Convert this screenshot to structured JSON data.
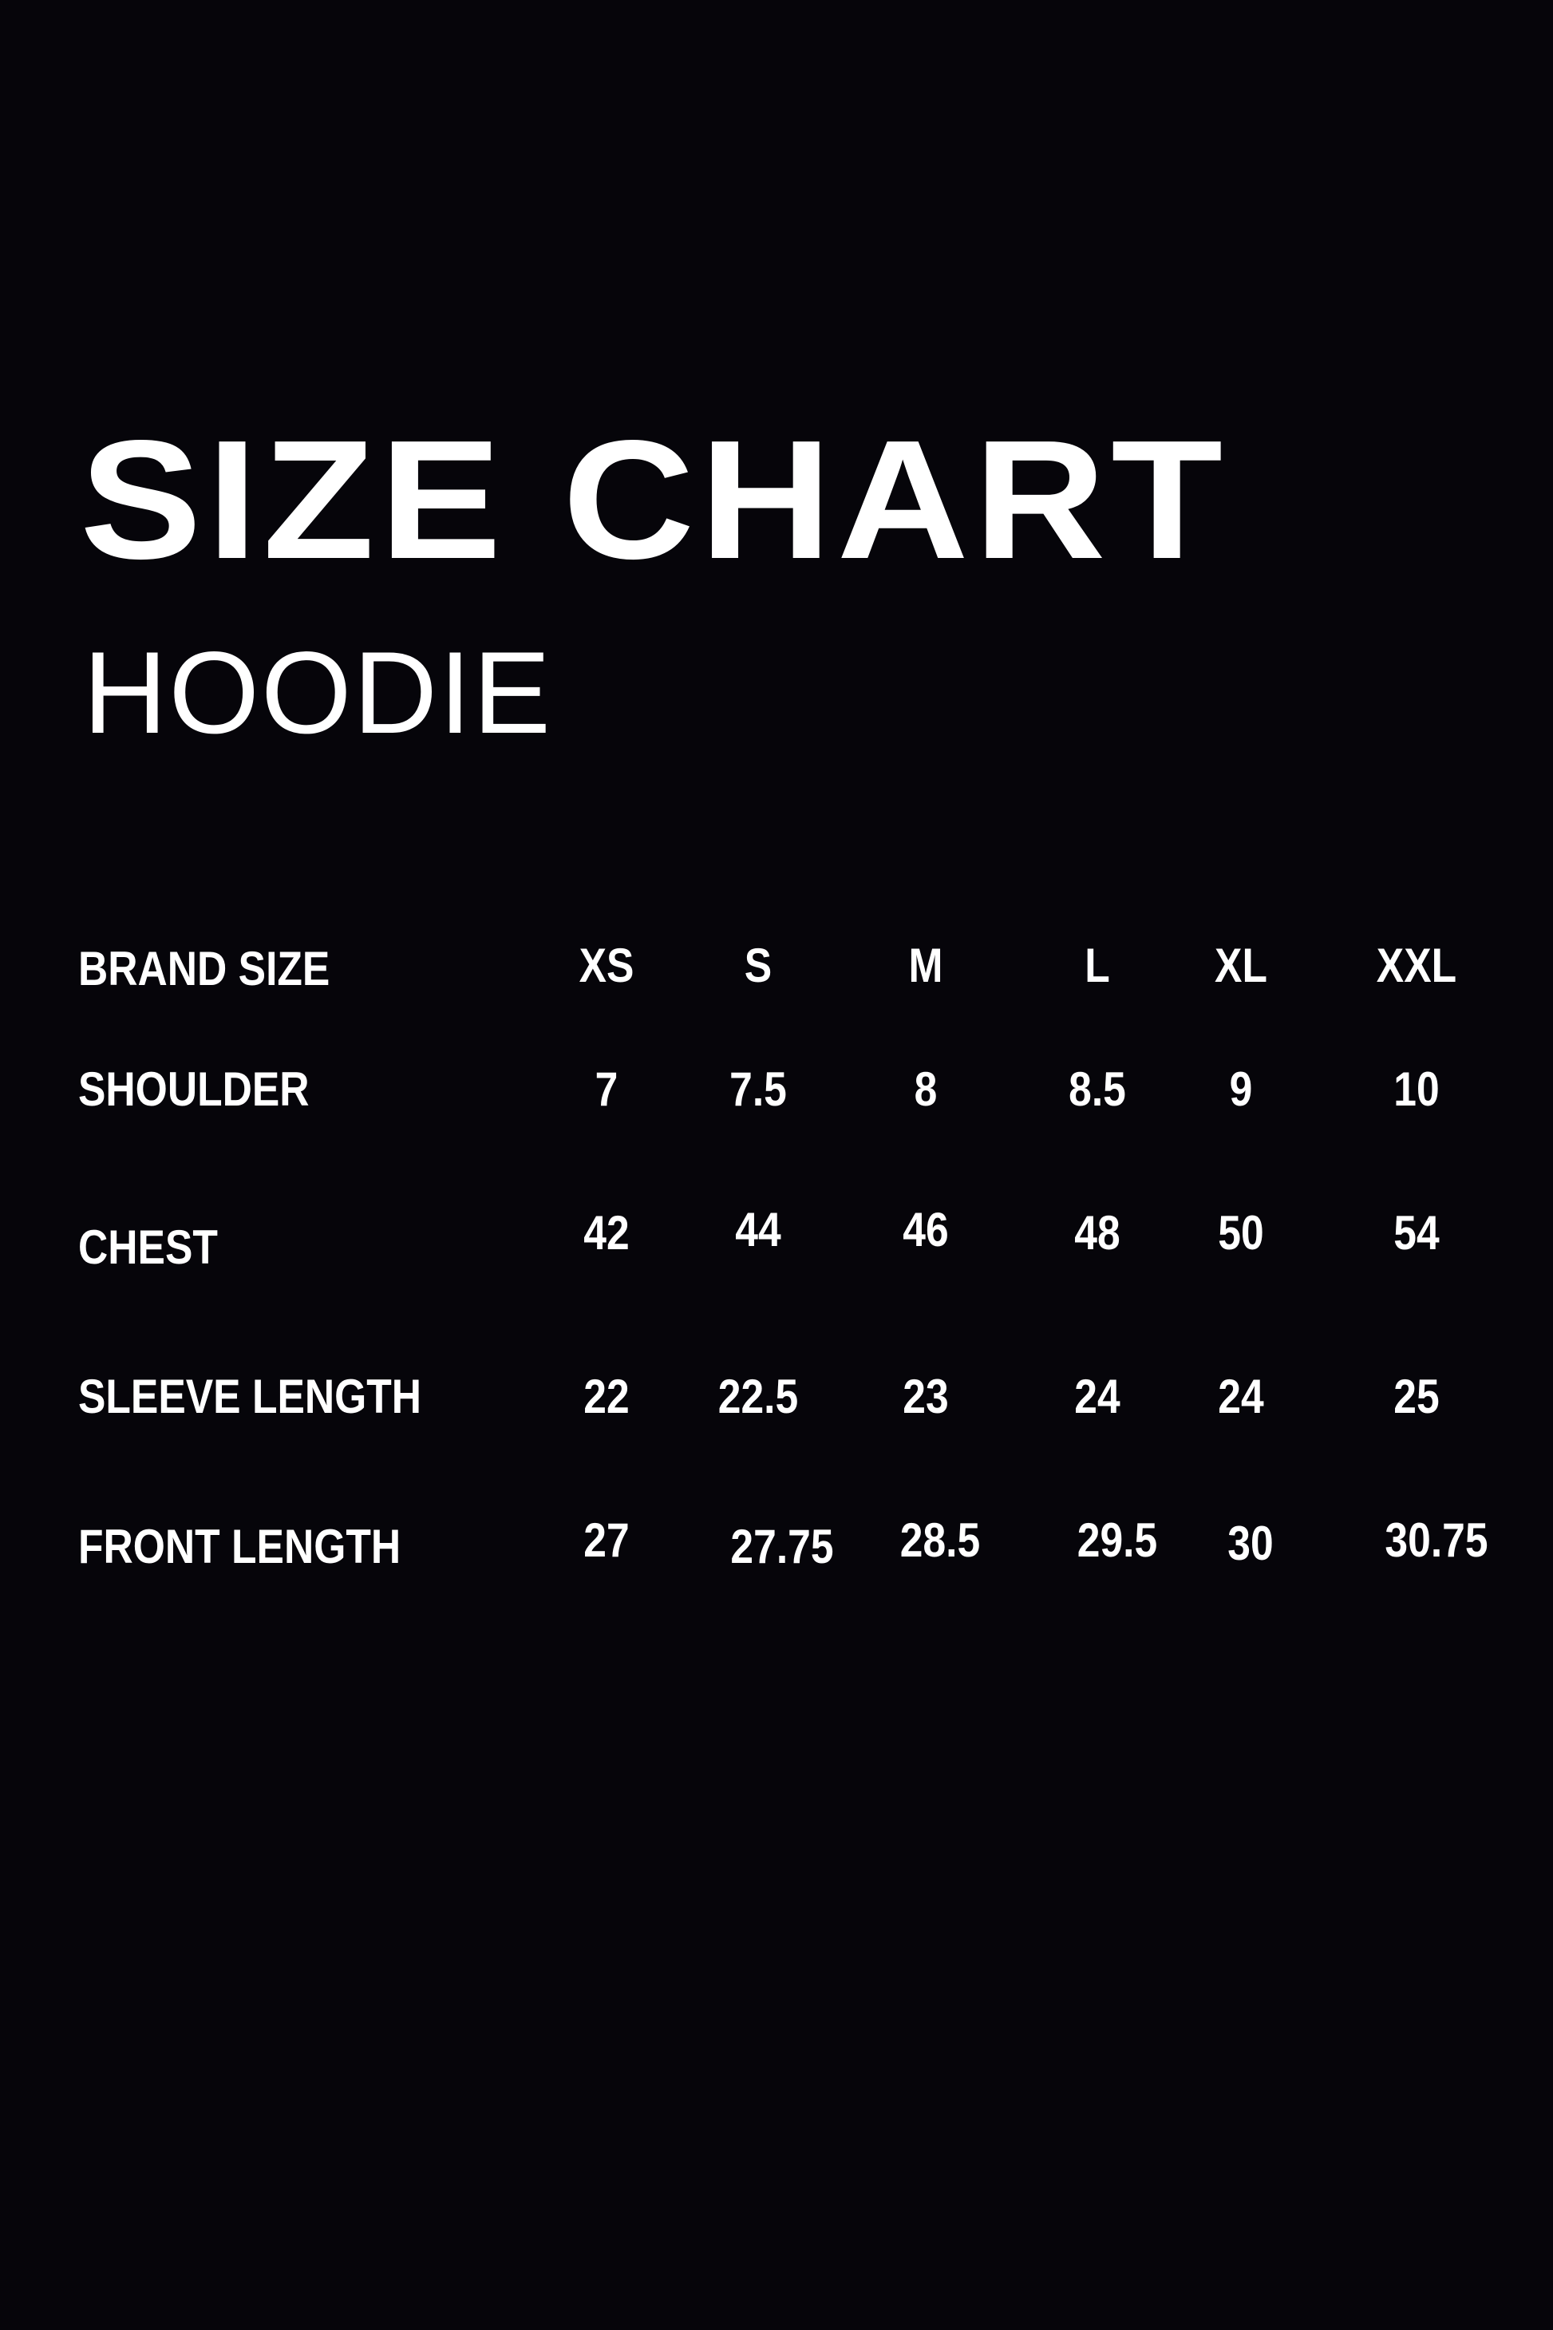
{
  "title": "SIZE CHART",
  "subtitle": "HOODIE",
  "table": {
    "header": {
      "label": "BRAND SIZE",
      "sizes": [
        "XS",
        "S",
        "M",
        "L",
        "XL",
        "XXL"
      ]
    },
    "rows": [
      {
        "label": "SHOULDER",
        "values": [
          "7",
          "7.5",
          "8",
          "8.5",
          "9",
          "10"
        ]
      },
      {
        "label": "CHEST",
        "values": [
          "42",
          "44",
          "46",
          "48",
          "50",
          "54"
        ]
      },
      {
        "label": "SLEEVE LENGTH",
        "values": [
          "22",
          "22.5",
          "23",
          "24",
          "24",
          "25"
        ]
      },
      {
        "label": "FRONT LENGTH",
        "values": [
          "27",
          "27.75",
          "28.5",
          "29.5",
          "30",
          "30.75"
        ]
      }
    ]
  },
  "colors": {
    "background": "#06050a",
    "text": "#ffffff"
  }
}
